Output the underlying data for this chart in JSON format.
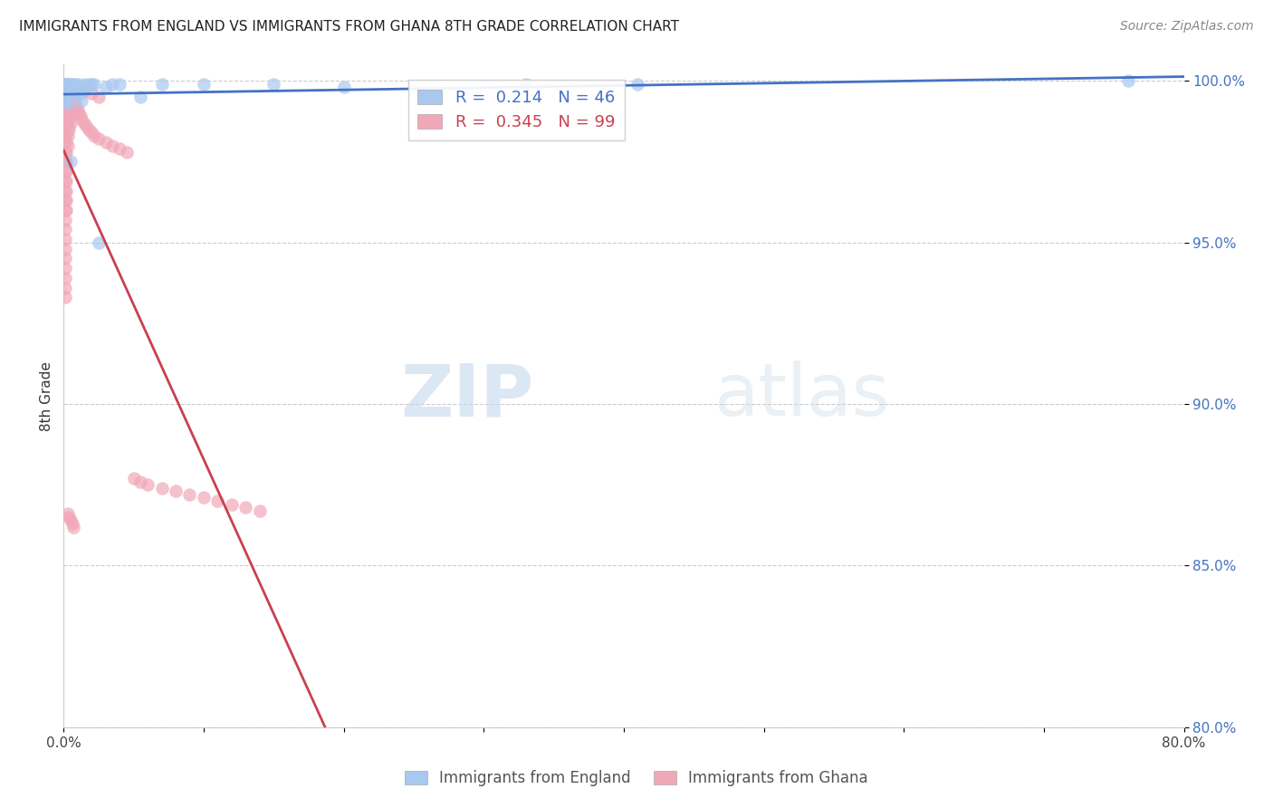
{
  "title": "IMMIGRANTS FROM ENGLAND VS IMMIGRANTS FROM GHANA 8TH GRADE CORRELATION CHART",
  "source": "Source: ZipAtlas.com",
  "ylabel": "8th Grade",
  "xmin": 0.0,
  "xmax": 0.8,
  "ymin": 0.8,
  "ymax": 1.005,
  "x_ticks": [
    0.0,
    0.1,
    0.2,
    0.3,
    0.4,
    0.5,
    0.6,
    0.7,
    0.8
  ],
  "x_tick_labels": [
    "0.0%",
    "",
    "",
    "",
    "",
    "",
    "",
    "",
    "80.0%"
  ],
  "y_ticks": [
    0.8,
    0.85,
    0.9,
    0.95,
    1.0
  ],
  "y_tick_labels": [
    "80.0%",
    "85.0%",
    "90.0%",
    "95.0%",
    "100.0%"
  ],
  "england_color": "#a8c8f0",
  "ghana_color": "#f0a8b8",
  "england_line_color": "#4472c4",
  "ghana_line_color": "#c94050",
  "england_R": 0.214,
  "england_N": 46,
  "ghana_R": 0.345,
  "ghana_N": 99,
  "legend_label_england": "Immigrants from England",
  "legend_label_ghana": "Immigrants from Ghana",
  "watermark_zip": "ZIP",
  "watermark_atlas": "atlas",
  "england_x": [
    0.001,
    0.001,
    0.001,
    0.001,
    0.001,
    0.002,
    0.002,
    0.002,
    0.002,
    0.003,
    0.003,
    0.003,
    0.003,
    0.004,
    0.004,
    0.004,
    0.005,
    0.005,
    0.005,
    0.006,
    0.006,
    0.007,
    0.008,
    0.008,
    0.009,
    0.01,
    0.011,
    0.012,
    0.013,
    0.015,
    0.016,
    0.018,
    0.02,
    0.022,
    0.025,
    0.03,
    0.035,
    0.04,
    0.055,
    0.07,
    0.1,
    0.15,
    0.2,
    0.33,
    0.41,
    0.76
  ],
  "england_y": [
    0.998,
    0.997,
    0.996,
    0.995,
    0.994,
    0.999,
    0.998,
    0.997,
    0.996,
    0.999,
    0.998,
    0.997,
    0.993,
    0.999,
    0.998,
    0.996,
    0.999,
    0.998,
    0.975,
    0.999,
    0.998,
    0.998,
    0.999,
    0.998,
    0.996,
    0.999,
    0.998,
    0.996,
    0.994,
    0.999,
    0.998,
    0.999,
    0.999,
    0.999,
    0.95,
    0.998,
    0.999,
    0.999,
    0.995,
    0.999,
    0.999,
    0.999,
    0.998,
    0.999,
    0.999,
    1.0
  ],
  "ghana_x": [
    0.001,
    0.001,
    0.001,
    0.001,
    0.001,
    0.001,
    0.001,
    0.001,
    0.001,
    0.001,
    0.001,
    0.001,
    0.001,
    0.001,
    0.001,
    0.001,
    0.001,
    0.001,
    0.001,
    0.001,
    0.001,
    0.001,
    0.001,
    0.001,
    0.001,
    0.001,
    0.001,
    0.001,
    0.002,
    0.002,
    0.002,
    0.002,
    0.002,
    0.002,
    0.002,
    0.002,
    0.002,
    0.002,
    0.002,
    0.002,
    0.002,
    0.002,
    0.002,
    0.003,
    0.003,
    0.003,
    0.003,
    0.003,
    0.003,
    0.003,
    0.004,
    0.004,
    0.004,
    0.004,
    0.004,
    0.005,
    0.005,
    0.005,
    0.005,
    0.006,
    0.006,
    0.007,
    0.007,
    0.008,
    0.008,
    0.009,
    0.01,
    0.011,
    0.012,
    0.013,
    0.015,
    0.016,
    0.018,
    0.02,
    0.022,
    0.025,
    0.03,
    0.035,
    0.04,
    0.045,
    0.05,
    0.055,
    0.06,
    0.07,
    0.08,
    0.09,
    0.1,
    0.11,
    0.12,
    0.13,
    0.14,
    0.015,
    0.02,
    0.025,
    0.003,
    0.004,
    0.005,
    0.006,
    0.007
  ],
  "ghana_y": [
    0.999,
    0.998,
    0.997,
    0.996,
    0.995,
    0.993,
    0.991,
    0.989,
    0.987,
    0.985,
    0.983,
    0.981,
    0.978,
    0.975,
    0.972,
    0.969,
    0.966,
    0.963,
    0.96,
    0.957,
    0.954,
    0.951,
    0.948,
    0.945,
    0.942,
    0.939,
    0.936,
    0.933,
    0.999,
    0.997,
    0.995,
    0.993,
    0.99,
    0.987,
    0.984,
    0.981,
    0.978,
    0.975,
    0.972,
    0.969,
    0.966,
    0.963,
    0.96,
    0.998,
    0.995,
    0.992,
    0.989,
    0.986,
    0.983,
    0.98,
    0.997,
    0.994,
    0.991,
    0.988,
    0.985,
    0.996,
    0.993,
    0.99,
    0.987,
    0.995,
    0.992,
    0.994,
    0.991,
    0.993,
    0.99,
    0.992,
    0.991,
    0.99,
    0.989,
    0.988,
    0.987,
    0.986,
    0.985,
    0.984,
    0.983,
    0.982,
    0.981,
    0.98,
    0.979,
    0.978,
    0.877,
    0.876,
    0.875,
    0.874,
    0.873,
    0.872,
    0.871,
    0.87,
    0.869,
    0.868,
    0.867,
    0.997,
    0.996,
    0.995,
    0.866,
    0.865,
    0.864,
    0.863,
    0.862
  ]
}
